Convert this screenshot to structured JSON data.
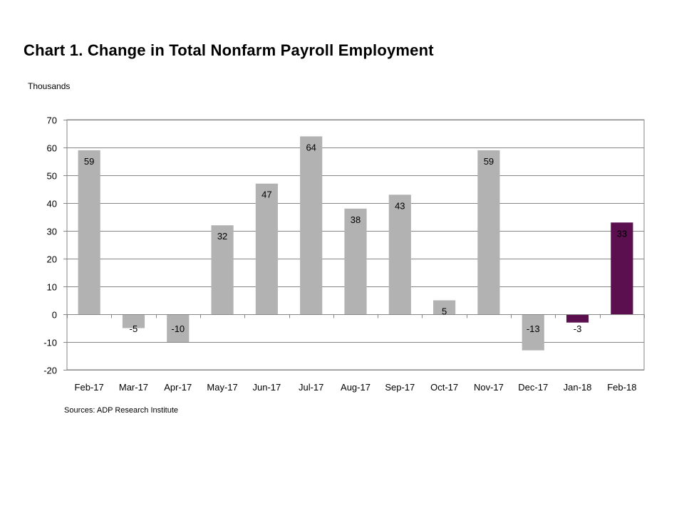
{
  "title": "Chart 1. Change in Total Nonfarm Payroll Employment",
  "units_label": "Thousands",
  "source": "Sources: ADP Research Institute",
  "chart_data": {
    "type": "bar",
    "title": "Chart 1. Change in Total Nonfarm Payroll Employment",
    "xlabel": "",
    "ylabel": "Thousands",
    "ylim": [
      -20,
      70
    ],
    "yticks": [
      70,
      60,
      50,
      40,
      30,
      20,
      10,
      0,
      -10,
      -20
    ],
    "grid": true,
    "categories": [
      "Feb-17",
      "Mar-17",
      "Apr-17",
      "May-17",
      "Jun-17",
      "Jul-17",
      "Aug-17",
      "Sep-17",
      "Oct-17",
      "Nov-17",
      "Dec-17",
      "Jan-18",
      "Feb-18"
    ],
    "values": [
      59,
      -5,
      -10,
      32,
      47,
      64,
      38,
      43,
      5,
      59,
      -13,
      -3,
      33
    ],
    "bar_colors": [
      "#b2b2b2",
      "#b2b2b2",
      "#b2b2b2",
      "#b2b2b2",
      "#b2b2b2",
      "#b2b2b2",
      "#b2b2b2",
      "#b2b2b2",
      "#b2b2b2",
      "#b2b2b2",
      "#b2b2b2",
      "#5b0f4f",
      "#5b0f4f"
    ],
    "label_colors": [
      "#000000",
      "#000000",
      "#000000",
      "#000000",
      "#000000",
      "#000000",
      "#000000",
      "#000000",
      "#000000",
      "#000000",
      "#000000",
      "#000000",
      "#ffffff"
    ]
  }
}
